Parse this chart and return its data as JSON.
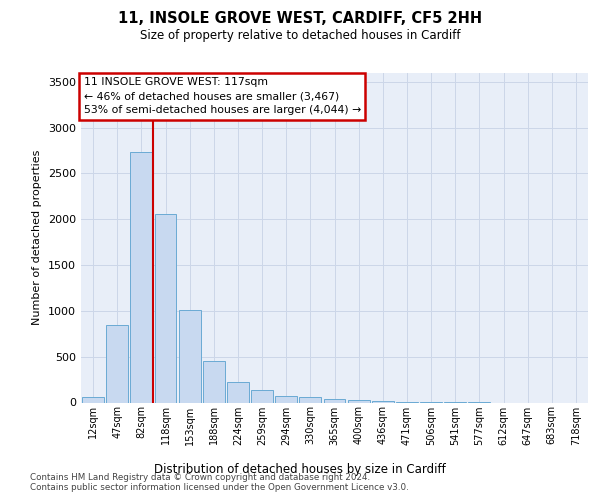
{
  "title_line1": "11, INSOLE GROVE WEST, CARDIFF, CF5 2HH",
  "title_line2": "Size of property relative to detached houses in Cardiff",
  "xlabel": "Distribution of detached houses by size in Cardiff",
  "ylabel": "Number of detached properties",
  "categories": [
    "12sqm",
    "47sqm",
    "82sqm",
    "118sqm",
    "153sqm",
    "188sqm",
    "224sqm",
    "259sqm",
    "294sqm",
    "330sqm",
    "365sqm",
    "400sqm",
    "436sqm",
    "471sqm",
    "506sqm",
    "541sqm",
    "577sqm",
    "612sqm",
    "647sqm",
    "683sqm",
    "718sqm"
  ],
  "values": [
    60,
    850,
    2730,
    2060,
    1010,
    455,
    225,
    140,
    70,
    55,
    40,
    30,
    15,
    10,
    5,
    2,
    1,
    0,
    0,
    0,
    0
  ],
  "bar_color": "#c8d9f0",
  "bar_edge_color": "#6aaad4",
  "annotation_text": "11 INSOLE GROVE WEST: 117sqm\n← 46% of detached houses are smaller (3,467)\n53% of semi-detached houses are larger (4,044) →",
  "annotation_box_color": "#ffffff",
  "annotation_box_edge_color": "#cc0000",
  "vline_color": "#cc0000",
  "vline_x": 2.5,
  "ylim": [
    0,
    3600
  ],
  "yticks": [
    0,
    500,
    1000,
    1500,
    2000,
    2500,
    3000,
    3500
  ],
  "footnote_line1": "Contains HM Land Registry data © Crown copyright and database right 2024.",
  "footnote_line2": "Contains public sector information licensed under the Open Government Licence v3.0.",
  "grid_color": "#ccd6e8",
  "background_color": "#e8eef8"
}
